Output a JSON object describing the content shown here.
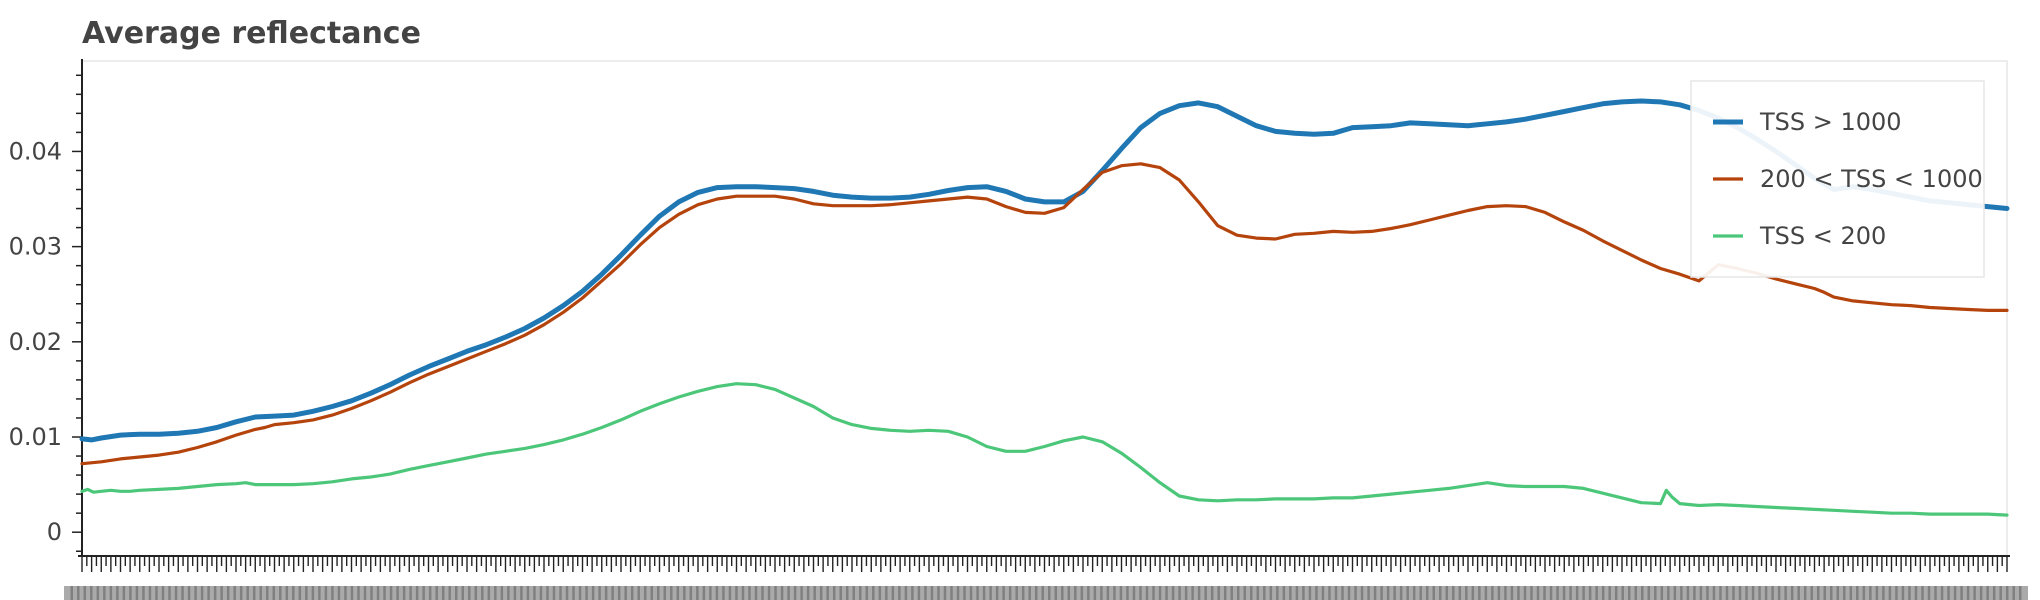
{
  "chart_data": {
    "type": "line",
    "title": "Average reflectance",
    "xlabel": "",
    "ylabel": "",
    "xlim": [
      0,
      100
    ],
    "ylim": [
      -0.0025,
      0.0495
    ],
    "y_ticks": [
      0,
      0.01,
      0.02,
      0.03,
      0.04
    ],
    "y_tick_labels": [
      "0",
      "0.01",
      "0.02",
      "0.03",
      "0.04"
    ],
    "x_tick_labels_legible": false,
    "grid": false,
    "legend_position": "top-right",
    "series": [
      {
        "name": "TSS > 1000",
        "color": "#1f77b4",
        "x": [
          0,
          0.5,
          1,
          2,
          3,
          4,
          5,
          6,
          7,
          8,
          9,
          10,
          11,
          12,
          13,
          14,
          15,
          16,
          17,
          18,
          19,
          20,
          21,
          22,
          23,
          24,
          25,
          26,
          27,
          28,
          29,
          30,
          31,
          32,
          33,
          34,
          35,
          36,
          37,
          38,
          39,
          40,
          41,
          42,
          43,
          44,
          45,
          46,
          47,
          48,
          49,
          50,
          51,
          52,
          53,
          54,
          55,
          56,
          57,
          58,
          59,
          60,
          61,
          62,
          63,
          64,
          65,
          66,
          67,
          68,
          69,
          70,
          71,
          72,
          72.5,
          73,
          74,
          75,
          76,
          77,
          78,
          79,
          80,
          81,
          82,
          83,
          84,
          85,
          86,
          87,
          88,
          89,
          90,
          91,
          92,
          93,
          94,
          95,
          96,
          97,
          98,
          99,
          100
        ],
        "y": [
          0.0098,
          0.0097,
          0.0099,
          0.0102,
          0.0103,
          0.0103,
          0.0104,
          0.0106,
          0.011,
          0.0116,
          0.0121,
          0.0122,
          0.0123,
          0.0127,
          0.0132,
          0.0138,
          0.0146,
          0.0155,
          0.0165,
          0.0174,
          0.0182,
          0.019,
          0.0197,
          0.0205,
          0.0214,
          0.0225,
          0.0238,
          0.0253,
          0.0271,
          0.0291,
          0.0312,
          0.0332,
          0.0347,
          0.0357,
          0.0362,
          0.0363,
          0.0363,
          0.0362,
          0.0361,
          0.0358,
          0.0354,
          0.0352,
          0.0351,
          0.0351,
          0.0352,
          0.0355,
          0.0359,
          0.0362,
          0.0363,
          0.0358,
          0.035,
          0.0347,
          0.0347,
          0.0358,
          0.038,
          0.0403,
          0.0425,
          0.044,
          0.0448,
          0.0451,
          0.0447,
          0.0437,
          0.0427,
          0.0421,
          0.0419,
          0.0418,
          0.0419,
          0.0425,
          0.0426,
          0.0427,
          0.043,
          0.0429,
          0.0428,
          0.0427,
          0.0428,
          0.0429,
          0.0431,
          0.0434,
          0.0438,
          0.0442,
          0.0446,
          0.045,
          0.0452,
          0.0453,
          0.0452,
          0.0449,
          0.0443,
          0.0435,
          0.0425,
          0.0413,
          0.04,
          0.0386,
          0.0372,
          0.036,
          0.0363,
          0.036,
          0.0356,
          0.0352,
          0.0348,
          0.0346,
          0.0344,
          0.0342,
          0.034
        ]
      },
      {
        "name": "200 < TSS < 1000",
        "color": "#b5430c",
        "x": [
          0,
          1,
          2,
          3,
          4,
          5,
          6,
          7,
          8,
          9,
          9.5,
          10,
          11,
          12,
          13,
          14,
          15,
          16,
          17,
          18,
          19,
          20,
          21,
          22,
          23,
          24,
          25,
          26,
          27,
          28,
          29,
          30,
          31,
          32,
          33,
          34,
          35,
          36,
          37,
          38,
          39,
          40,
          41,
          42,
          43,
          44,
          45,
          46,
          47,
          48,
          49,
          50,
          51,
          52,
          53,
          54,
          55,
          56,
          57,
          58,
          59,
          60,
          61,
          62,
          63,
          64,
          65,
          66,
          67,
          68,
          69,
          70,
          71,
          72,
          73,
          74,
          75,
          76,
          77,
          78,
          79,
          80,
          81,
          82,
          83,
          84,
          85,
          86,
          87,
          88,
          89,
          90,
          90.5,
          91,
          92,
          93,
          94,
          95,
          96,
          97,
          98,
          99,
          100
        ],
        "y": [
          0.0072,
          0.0074,
          0.0077,
          0.0079,
          0.0081,
          0.0084,
          0.0089,
          0.0095,
          0.0102,
          0.0108,
          0.011,
          0.0113,
          0.0115,
          0.0118,
          0.0123,
          0.013,
          0.0138,
          0.0147,
          0.0157,
          0.0166,
          0.0174,
          0.0182,
          0.019,
          0.0198,
          0.0207,
          0.0218,
          0.0231,
          0.0246,
          0.0264,
          0.0282,
          0.0302,
          0.032,
          0.0334,
          0.0344,
          0.035,
          0.0353,
          0.0353,
          0.0353,
          0.035,
          0.0345,
          0.0343,
          0.0343,
          0.0343,
          0.0344,
          0.0346,
          0.0348,
          0.035,
          0.0352,
          0.035,
          0.0342,
          0.0336,
          0.0335,
          0.0341,
          0.036,
          0.0378,
          0.0385,
          0.0387,
          0.0383,
          0.037,
          0.0347,
          0.0322,
          0.0312,
          0.0309,
          0.0308,
          0.0313,
          0.0314,
          0.0316,
          0.0315,
          0.0316,
          0.0319,
          0.0323,
          0.0328,
          0.0333,
          0.0338,
          0.0342,
          0.0343,
          0.0342,
          0.0336,
          0.0326,
          0.0317,
          0.0306,
          0.0296,
          0.0286,
          0.0277,
          0.0271,
          0.0264,
          0.0281,
          0.0277,
          0.0272,
          0.0266,
          0.0261,
          0.0256,
          0.0252,
          0.0247,
          0.0243,
          0.0241,
          0.0239,
          0.0238,
          0.0236,
          0.0235,
          0.0234,
          0.0233,
          0.0233
        ]
      },
      {
        "name": "TSS < 200",
        "color": "#4cc77a",
        "x": [
          0,
          0.3,
          0.6,
          1,
          1.5,
          2,
          2.5,
          3,
          4,
          5,
          6,
          7,
          8,
          8.5,
          9,
          10,
          11,
          12,
          13,
          14,
          15,
          16,
          17,
          18,
          19,
          20,
          21,
          22,
          23,
          24,
          25,
          26,
          27,
          28,
          29,
          30,
          31,
          32,
          33,
          34,
          35,
          36,
          37,
          38,
          39,
          40,
          41,
          42,
          43,
          44,
          45,
          46,
          47,
          48,
          49,
          50,
          51,
          52,
          53,
          54,
          55,
          56,
          57,
          58,
          59,
          60,
          61,
          62,
          63,
          64,
          65,
          66,
          67,
          68,
          69,
          70,
          71,
          72,
          73,
          74,
          75,
          76,
          77,
          78,
          79,
          80,
          81,
          82,
          82.3,
          82.6,
          83,
          84,
          85,
          86,
          87,
          88,
          89,
          90,
          91,
          92,
          93,
          94,
          95,
          96,
          97,
          98,
          99,
          100
        ],
        "y": [
          0.0043,
          0.0045,
          0.0042,
          0.0043,
          0.0044,
          0.0043,
          0.0043,
          0.0044,
          0.0045,
          0.0046,
          0.0048,
          0.005,
          0.0051,
          0.0052,
          0.005,
          0.005,
          0.005,
          0.0051,
          0.0053,
          0.0056,
          0.0058,
          0.0061,
          0.0066,
          0.007,
          0.0074,
          0.0078,
          0.0082,
          0.0085,
          0.0088,
          0.0092,
          0.0097,
          0.0103,
          0.011,
          0.0118,
          0.0127,
          0.0135,
          0.0142,
          0.0148,
          0.0153,
          0.0156,
          0.0155,
          0.015,
          0.0141,
          0.0132,
          0.012,
          0.0113,
          0.0109,
          0.0107,
          0.0106,
          0.0107,
          0.0106,
          0.01,
          0.009,
          0.0085,
          0.0085,
          0.009,
          0.0096,
          0.01,
          0.0095,
          0.0083,
          0.0068,
          0.0052,
          0.0038,
          0.0034,
          0.0033,
          0.0034,
          0.0034,
          0.0035,
          0.0035,
          0.0035,
          0.0036,
          0.0036,
          0.0038,
          0.004,
          0.0042,
          0.0044,
          0.0046,
          0.0049,
          0.0052,
          0.0049,
          0.0048,
          0.0048,
          0.0048,
          0.0046,
          0.0041,
          0.0036,
          0.0031,
          0.003,
          0.0044,
          0.0037,
          0.003,
          0.0028,
          0.0029,
          0.0028,
          0.0027,
          0.0026,
          0.0025,
          0.0024,
          0.0023,
          0.0022,
          0.0021,
          0.002,
          0.002,
          0.0019,
          0.0019,
          0.0019,
          0.0019,
          0.0018
        ]
      }
    ]
  }
}
